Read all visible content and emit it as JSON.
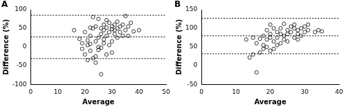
{
  "chart_data": [
    {
      "type": "scatter",
      "title": "A",
      "x_label": "Average",
      "y_label": "Difference (%)",
      "x": [
        16,
        18,
        19,
        19,
        20,
        20,
        21,
        21,
        22,
        22,
        22,
        23,
        23,
        23,
        24,
        24,
        24,
        25,
        25,
        25,
        25,
        26,
        26,
        26,
        27,
        27,
        27,
        27,
        28,
        28,
        28,
        29,
        29,
        29,
        30,
        30,
        30,
        30,
        31,
        31,
        31,
        32,
        32,
        32,
        33,
        33,
        34,
        34,
        35,
        35,
        36,
        36,
        37,
        38,
        40,
        28,
        24,
        22,
        26,
        21
      ],
      "values": [
        45,
        22,
        -5,
        10,
        -20,
        40,
        5,
        -35,
        8,
        30,
        -10,
        50,
        80,
        -30,
        15,
        -42,
        55,
        75,
        25,
        0,
        -8,
        35,
        50,
        -73,
        10,
        20,
        45,
        60,
        -20,
        30,
        52,
        5,
        40,
        65,
        15,
        48,
        55,
        -15,
        35,
        60,
        45,
        50,
        25,
        68,
        40,
        55,
        30,
        60,
        83,
        45,
        55,
        30,
        65,
        42,
        45,
        72,
        -25,
        52,
        -2,
        18
      ],
      "hlines": [
        85,
        27,
        -31
      ],
      "line_style": "dashed",
      "color": "#000000",
      "marker": "open_circle",
      "grid": false,
      "xlim": [
        0,
        50
      ],
      "xticks": [
        0,
        10,
        20,
        30,
        40,
        50
      ],
      "ylim": [
        -100,
        100
      ],
      "yticks": [
        -100,
        -50,
        0,
        50,
        100
      ]
    },
    {
      "type": "scatter",
      "title": "B",
      "x_label": "Average",
      "y_label": "Difference (%)",
      "x": [
        14,
        15,
        15,
        16,
        16,
        17,
        17,
        18,
        18,
        18,
        19,
        19,
        19,
        20,
        20,
        20,
        21,
        21,
        21,
        22,
        22,
        22,
        23,
        23,
        24,
        24,
        24,
        25,
        25,
        25,
        26,
        26,
        27,
        27,
        27,
        28,
        28,
        28,
        29,
        29,
        30,
        30,
        31,
        31,
        33,
        34,
        35,
        13,
        20,
        23
      ],
      "values": [
        22,
        75,
        30,
        60,
        -18,
        72,
        35,
        80,
        55,
        45,
        95,
        70,
        50,
        85,
        75,
        110,
        100,
        65,
        45,
        90,
        75,
        55,
        85,
        100,
        70,
        80,
        112,
        95,
        65,
        85,
        105,
        90,
        100,
        75,
        110,
        95,
        85,
        70,
        100,
        80,
        105,
        90,
        95,
        110,
        90,
        95,
        92,
        70,
        40,
        60
      ],
      "hlines": [
        127,
        80,
        32
      ],
      "line_style": "dashed",
      "color": "#000000",
      "marker": "open_circle",
      "grid": false,
      "xlim": [
        0,
        40
      ],
      "xticks": [
        0,
        10,
        20,
        30,
        40
      ],
      "ylim": [
        -50,
        150
      ],
      "yticks": [
        -50,
        0,
        50,
        100,
        150
      ]
    }
  ]
}
